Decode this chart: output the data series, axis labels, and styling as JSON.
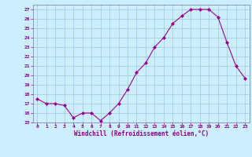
{
  "x": [
    0,
    1,
    2,
    3,
    4,
    5,
    6,
    7,
    8,
    9,
    10,
    11,
    12,
    13,
    14,
    15,
    16,
    17,
    18,
    19,
    20,
    21,
    22,
    23
  ],
  "y": [
    17.5,
    17.0,
    17.0,
    16.8,
    15.5,
    16.0,
    16.0,
    15.2,
    16.0,
    17.0,
    18.5,
    20.3,
    21.3,
    23.0,
    24.0,
    25.5,
    26.3,
    27.0,
    27.0,
    27.0,
    26.2,
    23.5,
    21.0,
    19.7
  ],
  "line_color": "#990099",
  "marker": "D",
  "marker_size": 2,
  "xlabel": "Windchill (Refroidissement éolien,°C)",
  "ylim": [
    15,
    27.5
  ],
  "xlim": [
    -0.5,
    23.5
  ],
  "yticks": [
    15,
    16,
    17,
    18,
    19,
    20,
    21,
    22,
    23,
    24,
    25,
    26,
    27
  ],
  "xticks": [
    0,
    1,
    2,
    3,
    4,
    5,
    6,
    7,
    8,
    9,
    10,
    11,
    12,
    13,
    14,
    15,
    16,
    17,
    18,
    19,
    20,
    21,
    22,
    23
  ],
  "bg_color": "#cceeff",
  "grid_color": "#99cccc",
  "label_color": "#880088",
  "tick_color": "#880088",
  "spine_color": "#7777aa"
}
